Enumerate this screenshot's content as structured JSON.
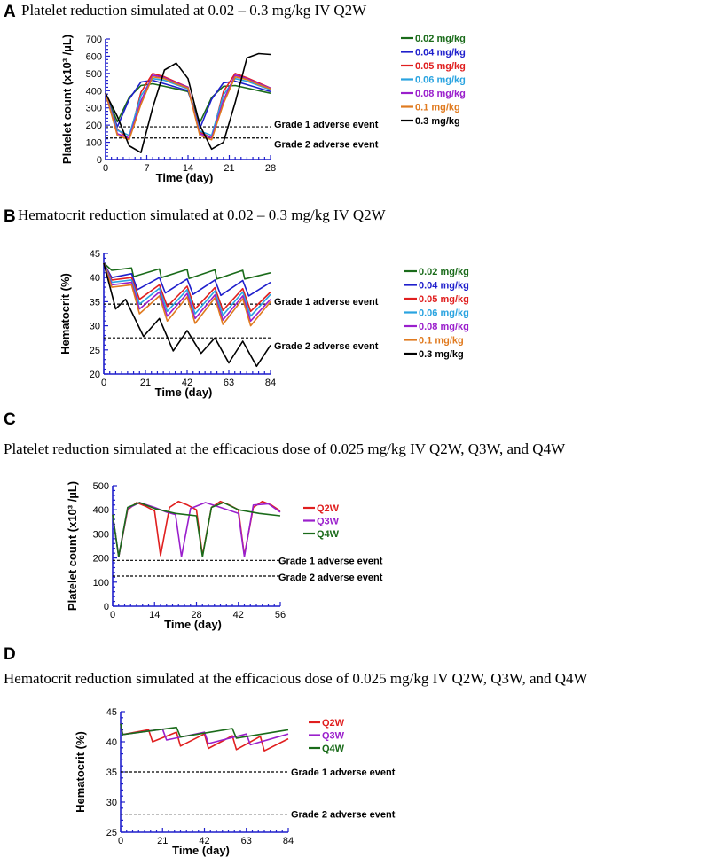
{
  "chart_data": [
    {
      "id": "A",
      "panel_letter": "A",
      "title": "Platelet reduction simulated  at 0.02 – 0.3 mg/kg IV Q2W",
      "type": "line",
      "xlabel": "Time (day)",
      "ylabel": "Platelet count (x10³ /µL)",
      "xlim": [
        0,
        28
      ],
      "ylim": [
        0,
        700
      ],
      "xticks": [
        0,
        7,
        14,
        21,
        28
      ],
      "yticks": [
        0,
        100,
        200,
        300,
        400,
        500,
        600,
        700
      ],
      "ref_lines": [
        {
          "label": "Grade 1 adverse event",
          "y": 190
        },
        {
          "label": "Grade 2 adverse event",
          "y": 125
        }
      ],
      "series": [
        {
          "name": "0.02 mg/kg",
          "color": "#1a6b1a",
          "x": [
            0,
            2,
            4,
            6,
            8,
            10,
            12,
            14,
            16,
            18,
            20,
            22,
            24,
            26,
            28
          ],
          "values": [
            385,
            220,
            360,
            430,
            440,
            425,
            410,
            395,
            215,
            360,
            425,
            430,
            415,
            400,
            385
          ]
        },
        {
          "name": "0.04 mg/kg",
          "color": "#1f1fcc",
          "x": [
            0,
            2,
            4,
            6,
            8,
            10,
            12,
            14,
            16,
            18,
            20,
            22,
            24,
            26,
            28
          ],
          "values": [
            385,
            190,
            350,
            450,
            460,
            440,
            420,
            400,
            180,
            350,
            445,
            455,
            435,
            415,
            395
          ]
        },
        {
          "name": "0.05 mg/kg",
          "color": "#e01f1f",
          "x": [
            0,
            2,
            4,
            6,
            8,
            10,
            12,
            14,
            16,
            18,
            20,
            22,
            24,
            26,
            28
          ],
          "values": [
            385,
            175,
            120,
            390,
            500,
            480,
            450,
            420,
            160,
            125,
            395,
            500,
            475,
            445,
            415
          ]
        },
        {
          "name": "0.06 mg/kg",
          "color": "#29a3e0",
          "x": [
            0,
            2,
            4,
            6,
            8,
            10,
            12,
            14,
            16,
            18,
            20,
            22,
            24,
            26,
            28
          ],
          "values": [
            385,
            170,
            140,
            370,
            470,
            460,
            435,
            410,
            165,
            140,
            375,
            470,
            455,
            430,
            405
          ]
        },
        {
          "name": "0.08 mg/kg",
          "color": "#9a1fcc",
          "x": [
            0,
            2,
            4,
            6,
            8,
            10,
            12,
            14,
            16,
            18,
            20,
            22,
            24,
            26,
            28
          ],
          "values": [
            385,
            150,
            125,
            340,
            490,
            475,
            445,
            420,
            150,
            125,
            345,
            490,
            470,
            440,
            415
          ]
        },
        {
          "name": "0.1 mg/kg",
          "color": "#e07a1f",
          "x": [
            0,
            2,
            4,
            6,
            8,
            10,
            12,
            14,
            16,
            18,
            20,
            22,
            24,
            26,
            28
          ],
          "values": [
            385,
            140,
            115,
            320,
            480,
            470,
            440,
            415,
            140,
            115,
            325,
            480,
            465,
            435,
            410
          ]
        },
        {
          "name": "0.3 mg/kg",
          "color": "#000000",
          "x": [
            0,
            2,
            4,
            6,
            8,
            10,
            12,
            14,
            16,
            18,
            20,
            22,
            24,
            26,
            28
          ],
          "values": [
            385,
            250,
            80,
            40,
            300,
            520,
            560,
            470,
            200,
            60,
            100,
            330,
            590,
            615,
            610
          ]
        }
      ]
    },
    {
      "id": "B",
      "panel_letter": "B",
      "title": "Hematocrit reduction simulated  at 0.02 – 0.3 mg/kg IV Q2W",
      "type": "line",
      "xlabel": "Time (day)",
      "ylabel": "Hematocrit (%)",
      "xlim": [
        0,
        84
      ],
      "ylim": [
        20,
        45
      ],
      "xticks": [
        0,
        21,
        42,
        63,
        84
      ],
      "yticks": [
        20,
        25,
        30,
        35,
        40,
        45
      ],
      "ref_lines": [
        {
          "label": "Grade 1 adverse event",
          "y": 34.5
        },
        {
          "label": "Grade 2 adverse event",
          "y": 27.5
        }
      ],
      "series": [
        {
          "name": "0.02 mg/kg",
          "color": "#1a6b1a",
          "x": [
            0,
            4,
            14,
            15,
            28,
            29,
            42,
            43,
            56,
            57,
            70,
            71,
            84
          ],
          "values": [
            43,
            41.5,
            42,
            40.2,
            41.8,
            40,
            41.7,
            39.8,
            41.6,
            39.7,
            41.5,
            39.7,
            41
          ]
        },
        {
          "name": "0.04 mg/kg",
          "color": "#1f1fcc",
          "x": [
            0,
            4,
            14,
            17,
            28,
            31,
            42,
            45,
            56,
            59,
            70,
            73,
            84
          ],
          "values": [
            43,
            40,
            40.8,
            37.5,
            40,
            36.8,
            39.7,
            36.5,
            39.5,
            36.3,
            39.4,
            36.2,
            39
          ]
        },
        {
          "name": "0.05 mg/kg",
          "color": "#e01f1f",
          "x": [
            0,
            4,
            14,
            18,
            28,
            32,
            42,
            46,
            56,
            60,
            70,
            74,
            84
          ],
          "values": [
            43,
            39.5,
            40,
            35.5,
            38.5,
            34,
            38.2,
            33.5,
            37.9,
            33.2,
            37.7,
            33,
            37
          ]
        },
        {
          "name": "0.06 mg/kg",
          "color": "#29a3e0",
          "x": [
            0,
            4,
            14,
            18,
            28,
            32,
            42,
            46,
            56,
            60,
            70,
            74,
            84
          ],
          "values": [
            43,
            39,
            39.5,
            34.5,
            37.8,
            33,
            37.5,
            32.5,
            37.2,
            32.2,
            37,
            32,
            36.5
          ]
        },
        {
          "name": "0.08 mg/kg",
          "color": "#9a1fcc",
          "x": [
            0,
            4,
            14,
            18,
            28,
            32,
            42,
            46,
            56,
            60,
            70,
            74,
            84
          ],
          "values": [
            43,
            38.5,
            39,
            33.5,
            37,
            32,
            36.7,
            31.5,
            36.4,
            31.2,
            36.2,
            31,
            35.5
          ]
        },
        {
          "name": "0.1 mg/kg",
          "color": "#e07a1f",
          "x": [
            0,
            4,
            14,
            18,
            28,
            32,
            42,
            46,
            56,
            60,
            70,
            74,
            84
          ],
          "values": [
            43,
            38,
            38.5,
            32.5,
            36.2,
            31,
            36,
            30.5,
            35.8,
            30.3,
            35.6,
            30,
            35
          ]
        },
        {
          "name": "0.3 mg/kg",
          "color": "#000000",
          "x": [
            0,
            6,
            11,
            20,
            28,
            35,
            42,
            49,
            56,
            63,
            70,
            77,
            84
          ],
          "values": [
            43,
            33.5,
            35.5,
            27.8,
            31.5,
            24.8,
            29,
            24.3,
            27.5,
            22.3,
            26.8,
            21.6,
            26
          ]
        }
      ]
    },
    {
      "id": "C",
      "panel_letter": "C",
      "title": "Platelet reduction simulated  at the efficacious dose of 0.025 mg/kg IV Q2W, Q3W, and Q4W",
      "type": "line",
      "xlabel": "Time (day)",
      "ylabel": "Platelet count (x10³ /µL)",
      "xlim": [
        0,
        56
      ],
      "ylim": [
        0,
        500
      ],
      "xticks": [
        0,
        14,
        28,
        42,
        56
      ],
      "yticks": [
        0,
        100,
        200,
        300,
        400,
        500
      ],
      "ref_lines": [
        {
          "label": "Grade 1 adverse event",
          "y": 190
        },
        {
          "label": "Grade 2 adverse event",
          "y": 125
        }
      ],
      "series": [
        {
          "name": "Q2W",
          "color": "#e01f1f",
          "x": [
            0,
            2,
            5,
            8,
            11,
            14,
            16,
            19,
            22,
            25,
            28,
            30,
            33,
            36,
            39,
            42,
            44,
            47,
            50,
            53,
            56
          ],
          "values": [
            380,
            205,
            400,
            430,
            415,
            395,
            210,
            410,
            435,
            420,
            400,
            210,
            410,
            435,
            420,
            400,
            210,
            410,
            435,
            420,
            395
          ]
        },
        {
          "name": "Q3W",
          "color": "#9a1fcc",
          "x": [
            0,
            2,
            5,
            9,
            14,
            18,
            21,
            23,
            26,
            31,
            36,
            42,
            44,
            47,
            52,
            56
          ],
          "values": [
            380,
            205,
            405,
            430,
            410,
            390,
            380,
            205,
            405,
            430,
            410,
            385,
            205,
            420,
            425,
            390
          ]
        },
        {
          "name": "Q4W",
          "color": "#1a6b1a",
          "x": [
            0,
            2,
            5,
            9,
            14,
            21,
            28,
            30,
            33,
            37,
            42,
            49,
            56
          ],
          "values": [
            380,
            205,
            410,
            430,
            405,
            385,
            375,
            205,
            410,
            430,
            400,
            385,
            375
          ]
        }
      ]
    },
    {
      "id": "D",
      "panel_letter": "D",
      "title": "Hematocrit reduction simulated  at the efficacious dose of 0.025 mg/kg IV Q2W, Q3W, and Q4W",
      "type": "line",
      "xlabel": "Time (day)",
      "ylabel": "Hematocrit (%)",
      "xlim": [
        0,
        84
      ],
      "ylim": [
        25,
        45
      ],
      "xticks": [
        0,
        21,
        42,
        63,
        84
      ],
      "yticks": [
        25,
        30,
        35,
        40,
        45
      ],
      "ref_lines": [
        {
          "label": "Grade 1 adverse event",
          "y": 35
        },
        {
          "label": "Grade 2 adverse event",
          "y": 28
        }
      ],
      "series": [
        {
          "name": "Q2W",
          "color": "#e01f1f",
          "x": [
            0,
            1,
            14,
            16,
            28,
            30,
            42,
            44,
            56,
            58,
            70,
            72,
            84
          ],
          "values": [
            43,
            41.2,
            42,
            40,
            41.6,
            39.3,
            41.3,
            38.9,
            41,
            38.7,
            40.9,
            38.5,
            40.5
          ]
        },
        {
          "name": "Q3W",
          "color": "#9a1fcc",
          "x": [
            0,
            1,
            21,
            23,
            42,
            44,
            63,
            65,
            84
          ],
          "values": [
            43,
            41.2,
            42.1,
            40.3,
            41.6,
            39.7,
            41.3,
            39.5,
            41.3
          ]
        },
        {
          "name": "Q4W",
          "color": "#1a6b1a",
          "x": [
            0,
            1,
            28,
            30,
            56,
            58,
            84
          ],
          "values": [
            43,
            41.2,
            42.4,
            40.8,
            42.2,
            40.6,
            42
          ]
        }
      ]
    }
  ]
}
